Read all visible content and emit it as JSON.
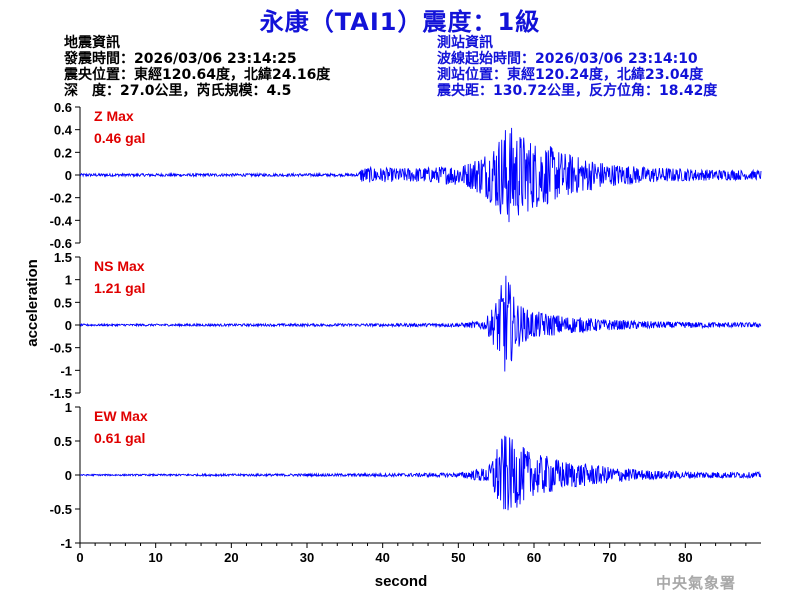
{
  "title": "永康（TAI1）震度：1級",
  "event_info": {
    "heading": "地震資訊",
    "origin_time": "發震時間：2026/03/06 23:14:25",
    "epicenter": "震央位置：東經120.64度，北緯24.16度",
    "depth_magnitude": "深　度：27.0公里，芮氏規模：4.5"
  },
  "station_info": {
    "heading": "測站資訊",
    "wave_start": "波線起始時間：2026/03/06 23:14:10",
    "location": "測站位置：東經120.24度，北緯23.04度",
    "distance_azimuth": "震央距：130.72公里，反方位角：18.42度"
  },
  "agency": "中央氣象署",
  "colors": {
    "trace": "#0000ff",
    "title": "#1212d8",
    "label": "#e00000",
    "station": "#1212d8"
  },
  "chart_data": {
    "type": "line",
    "xlabel": "second",
    "ylabel": "acceleration",
    "xlim": [
      0,
      90
    ],
    "xticks": [
      "0",
      "10",
      "20",
      "30",
      "40",
      "50",
      "60",
      "70",
      "80"
    ],
    "panels": [
      {
        "name": "Z Max",
        "max_label": "0.46 gal",
        "ylim": [
          -0.6,
          0.6
        ],
        "yticks": [
          "0.6",
          "0.4",
          "0.2",
          "0",
          "-0.2",
          "-0.4",
          "-0.6"
        ],
        "ytick_values": [
          0.6,
          0.4,
          0.2,
          0,
          -0.2,
          -0.4,
          -0.6
        ],
        "envelope": [
          [
            0,
            0.012
          ],
          [
            36.8,
            0.012
          ],
          [
            37.2,
            0.07
          ],
          [
            42,
            0.06
          ],
          [
            47,
            0.07
          ],
          [
            51,
            0.1
          ],
          [
            54,
            0.22
          ],
          [
            55.5,
            0.35
          ],
          [
            56.5,
            0.46
          ],
          [
            58,
            0.38
          ],
          [
            60,
            0.3
          ],
          [
            62,
            0.26
          ],
          [
            64,
            0.2
          ],
          [
            66,
            0.16
          ],
          [
            70,
            0.1
          ],
          [
            75,
            0.07
          ],
          [
            82,
            0.05
          ],
          [
            90,
            0.04
          ]
        ]
      },
      {
        "name": "NS Max",
        "max_label": "1.21 gal",
        "ylim": [
          -1.5,
          1.5
        ],
        "yticks": [
          "1.5",
          "1",
          "0.5",
          "0",
          "-0.5",
          "-1",
          "-1.5"
        ],
        "ytick_values": [
          1.5,
          1,
          0.5,
          0,
          -0.5,
          -1,
          -1.5
        ],
        "envelope": [
          [
            0,
            0.02
          ],
          [
            37,
            0.03
          ],
          [
            50,
            0.04
          ],
          [
            53.5,
            0.1
          ],
          [
            55,
            0.55
          ],
          [
            56.3,
            1.21
          ],
          [
            57.5,
            0.55
          ],
          [
            59,
            0.35
          ],
          [
            61,
            0.28
          ],
          [
            64,
            0.2
          ],
          [
            68,
            0.14
          ],
          [
            72,
            0.1
          ],
          [
            78,
            0.07
          ],
          [
            90,
            0.05
          ]
        ]
      },
      {
        "name": "EW Max",
        "max_label": "0.61 gal",
        "ylim": [
          -1,
          1
        ],
        "yticks": [
          "1",
          "0.5",
          "0",
          "-0.5",
          "-1"
        ],
        "ytick_values": [
          1,
          0.5,
          0,
          -0.5,
          -1
        ],
        "envelope": [
          [
            0,
            0.01
          ],
          [
            37,
            0.02
          ],
          [
            50,
            0.03
          ],
          [
            54,
            0.12
          ],
          [
            55,
            0.4
          ],
          [
            56,
            0.61
          ],
          [
            57.5,
            0.5
          ],
          [
            60,
            0.3
          ],
          [
            62,
            0.28
          ],
          [
            64,
            0.2
          ],
          [
            66,
            0.18
          ],
          [
            70,
            0.12
          ],
          [
            75,
            0.07
          ],
          [
            80,
            0.05
          ],
          [
            90,
            0.04
          ]
        ]
      }
    ]
  }
}
